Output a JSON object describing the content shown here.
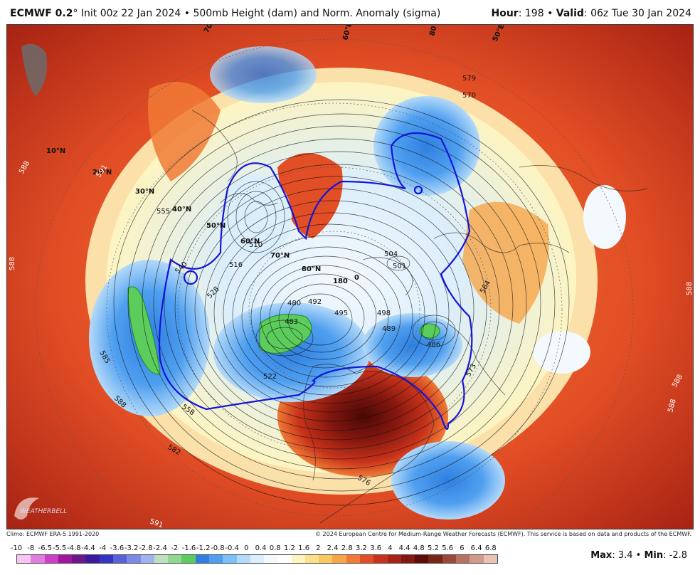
{
  "header": {
    "model": "ECMWF 0.2",
    "degree_symbol": "°",
    "init_text": "Init 00z 22 Jan 2024",
    "separator": "•",
    "field_text": "500mb Height (dam) and Norm. Anomaly (sigma)",
    "hour_label": "Hour",
    "hour_value": ": 198",
    "valid_label": "Valid",
    "valid_value": ": 06z Tue 30 Jan 2024"
  },
  "credits": {
    "climo": "Climo: ECMWF ERA-5 1991-2020",
    "copyright": "© 2024 European Centre for Medium-Range Weather Forecasts (ECMWF). This service is based on data and products of the ECMWF."
  },
  "legend": {
    "labels": [
      "-10",
      "-8",
      "-6.5",
      "-5.5",
      "-4.8",
      "-4.4",
      "-4",
      "-3.6",
      "-3.2",
      "-2.8",
      "-2.4",
      "-2",
      "-1.6",
      "-1.2",
      "-0.8",
      "-0.4",
      "0",
      "0.4",
      "0.8",
      "1.2",
      "1.6",
      "2",
      "2.4",
      "2.8",
      "3.2",
      "3.6",
      "4",
      "4.4",
      "4.8",
      "5.2",
      "5.6",
      "6",
      "6.4",
      "6.8"
    ],
    "colors": [
      "#f7c6f0",
      "#e27de0",
      "#cc3fc8",
      "#a1149f",
      "#6c1888",
      "#3a1aa1",
      "#3434c4",
      "#5a62d8",
      "#7c8ae6",
      "#9fb3ef",
      "#bfe0c0",
      "#8fd88f",
      "#5ccd5c",
      "#2f7fe0",
      "#4f9ff0",
      "#7fbff7",
      "#b4daf9",
      "#dbeefb",
      "#f4f9fd",
      "#ffffff",
      "#fdf4c0",
      "#fbe28a",
      "#f9c85a",
      "#f6a548",
      "#f07a36",
      "#e24e25",
      "#c8321a",
      "#a82314",
      "#84170f",
      "#5e0d08",
      "#7a2414",
      "#9a4a3a",
      "#b77262",
      "#d29a8a",
      "#e9c2b4"
    ],
    "max_label": "Max",
    "max_value": ": 3.4",
    "min_label": "Min",
    "min_value": ": -2.8"
  },
  "map": {
    "latitude_labels": [
      "10°N",
      "20°N",
      "30°N",
      "40°N",
      "50°N",
      "60°N",
      "70°N",
      "80°N"
    ],
    "longitude_labels": [
      "180",
      "0",
      "70°E",
      "60°E",
      "50°E",
      "80°E"
    ],
    "height_labels": [
      "588",
      "591",
      "588",
      "585",
      "588",
      "582",
      "591",
      "588",
      "588",
      "588",
      "555",
      "540",
      "528",
      "522",
      "516",
      "510",
      "504",
      "501",
      "498",
      "495",
      "492",
      "489",
      "486",
      "483",
      "480",
      "570",
      "576",
      "579",
      "558",
      "564",
      "573"
    ],
    "logo_text": "WEATHERBELL"
  }
}
